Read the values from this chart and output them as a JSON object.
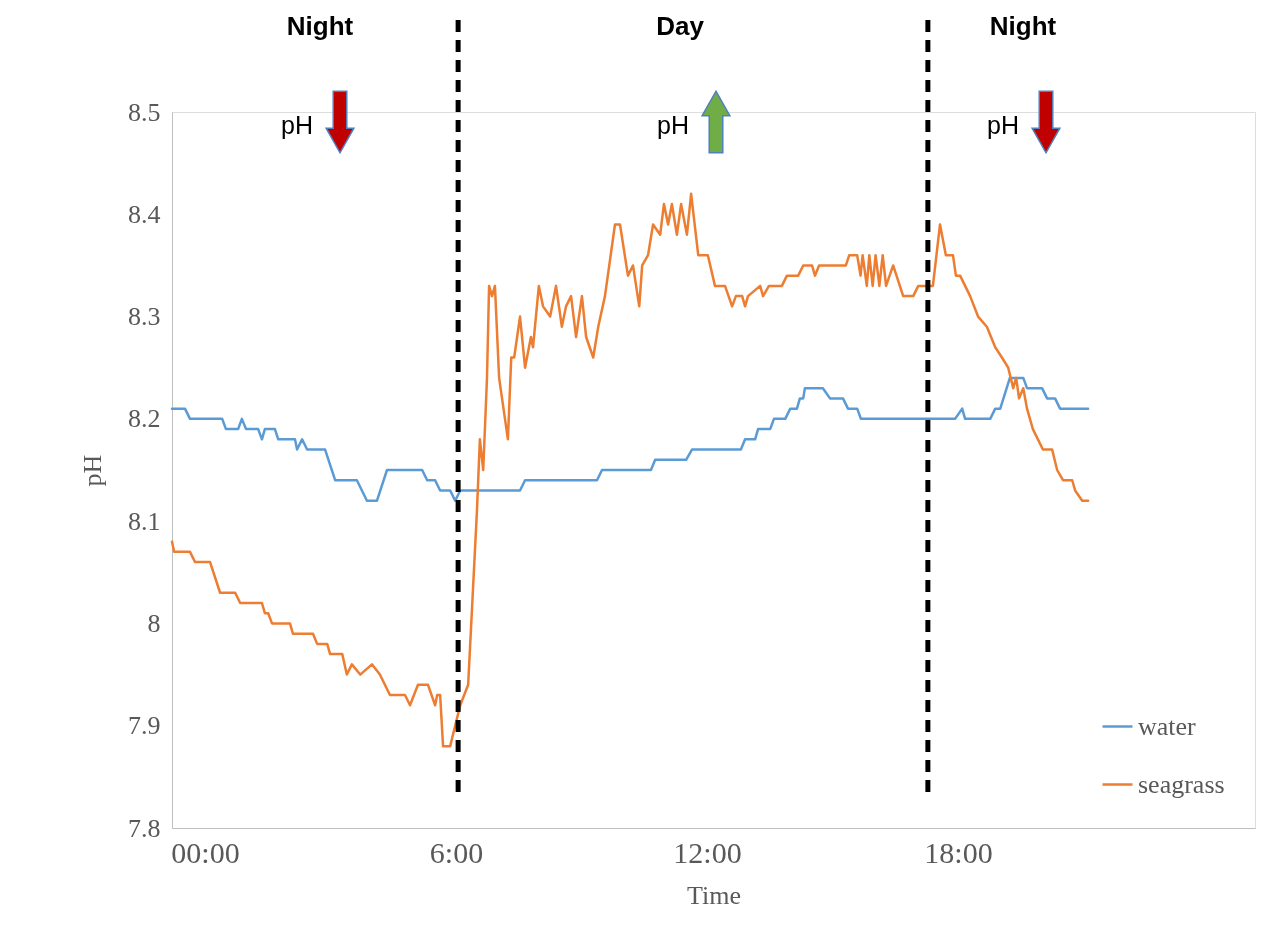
{
  "chart_data": {
    "type": "line",
    "xlabel": "Time",
    "ylabel": "pH",
    "xlim": [
      -0.79,
      25.1
    ],
    "xticks": [
      {
        "value": 0,
        "label": "00:00"
      },
      {
        "value": 6,
        "label": "6:00"
      },
      {
        "value": 12,
        "label": "12:00"
      },
      {
        "value": 18,
        "label": "18:00"
      }
    ],
    "ylim": [
      7.8,
      8.5
    ],
    "yticks": [
      7.8,
      7.9,
      8,
      8.1,
      8.2,
      8.3,
      8.4,
      8.5
    ],
    "grid": false,
    "legend": "bottom right",
    "marker": "none",
    "line_style": "solid",
    "series": [
      {
        "name": "water",
        "color": "#5b9bd5",
        "x": [
          -0.79,
          -0.48,
          -0.36,
          0.41,
          0.5,
          0.79,
          0.88,
          0.98,
          1.27,
          1.36,
          1.43,
          1.67,
          1.75,
          2.15,
          2.2,
          2.32,
          2.44,
          2.87,
          3.11,
          3.63,
          3.75,
          3.87,
          4.11,
          4.35,
          5.19,
          5.31,
          5.5,
          5.62,
          5.86,
          5.98,
          6.1,
          7.53,
          7.65,
          9.37,
          9.49,
          10.66,
          10.76,
          11.5,
          11.64,
          12.81,
          12.91,
          13.15,
          13.22,
          13.51,
          13.6,
          13.87,
          13.99,
          14.15,
          14.22,
          14.3,
          14.34,
          14.77,
          14.94,
          15.25,
          15.37,
          15.59,
          15.68,
          17.93,
          18.1,
          18.17,
          18.77,
          18.89,
          19.01,
          19.24,
          19.56,
          19.65,
          20.01,
          20.13,
          20.32,
          20.44,
          21.11
        ],
        "values": [
          8.21,
          8.21,
          8.2,
          8.2,
          8.19,
          8.19,
          8.2,
          8.19,
          8.19,
          8.18,
          8.19,
          8.19,
          8.18,
          8.18,
          8.17,
          8.18,
          8.17,
          8.17,
          8.14,
          8.14,
          8.13,
          8.12,
          8.12,
          8.15,
          8.15,
          8.14,
          8.14,
          8.13,
          8.13,
          8.12,
          8.13,
          8.13,
          8.14,
          8.14,
          8.15,
          8.15,
          8.16,
          8.16,
          8.17,
          8.17,
          8.18,
          8.18,
          8.19,
          8.19,
          8.2,
          8.2,
          8.21,
          8.21,
          8.22,
          8.22,
          8.23,
          8.23,
          8.22,
          8.22,
          8.21,
          8.21,
          8.2,
          8.2,
          8.21,
          8.2,
          8.2,
          8.21,
          8.21,
          8.24,
          8.24,
          8.23,
          8.23,
          8.22,
          8.22,
          8.21,
          8.21
        ]
      },
      {
        "name": "seagrass",
        "color": "#ed7d31",
        "x": [
          -0.79,
          -0.74,
          -0.36,
          -0.24,
          0.12,
          0.36,
          0.72,
          0.84,
          1.36,
          1.43,
          1.51,
          1.6,
          2.03,
          2.1,
          2.58,
          2.68,
          2.92,
          2.99,
          3.28,
          3.39,
          3.51,
          3.71,
          3.99,
          4.18,
          4.42,
          4.78,
          4.9,
          5.09,
          5.33,
          5.5,
          5.55,
          5.62,
          5.69,
          5.86,
          6.1,
          6.29,
          6.5,
          6.57,
          6.65,
          6.74,
          6.79,
          6.86,
          6.93,
          7.03,
          7.24,
          7.32,
          7.39,
          7.53,
          7.65,
          7.79,
          7.84,
          7.98,
          8.08,
          8.25,
          8.39,
          8.53,
          8.63,
          8.75,
          8.87,
          9.01,
          9.11,
          9.28,
          9.4,
          9.56,
          9.8,
          9.92,
          10.11,
          10.23,
          10.38,
          10.45,
          10.59,
          10.71,
          10.88,
          10.97,
          11.07,
          11.16,
          11.28,
          11.38,
          11.52,
          11.62,
          11.79,
          11.91,
          12.02,
          12.19,
          12.43,
          12.6,
          12.69,
          12.84,
          12.91,
          12.98,
          13.27,
          13.34,
          13.48,
          13.56,
          13.79,
          13.91,
          14.18,
          14.3,
          14.51,
          14.58,
          14.68,
          15.32,
          15.4,
          15.59,
          15.67,
          15.72,
          15.82,
          15.88,
          15.96,
          16.03,
          16.12,
          16.2,
          16.28,
          16.45,
          16.69,
          16.93,
          17.05,
          17.4,
          17.57,
          17.71,
          17.88,
          17.95,
          18.05,
          18.29,
          18.48,
          18.69,
          18.89,
          19.05,
          19.2,
          19.32,
          19.39,
          19.46,
          19.56,
          19.65,
          19.79,
          20.03,
          20.25,
          20.37,
          20.51,
          20.73,
          20.8,
          20.97,
          21.11
        ],
        "values": [
          8.08,
          8.07,
          8.07,
          8.06,
          8.06,
          8.03,
          8.03,
          8.02,
          8.02,
          8.01,
          8.01,
          8.0,
          8.0,
          7.99,
          7.99,
          7.98,
          7.98,
          7.97,
          7.97,
          7.95,
          7.96,
          7.95,
          7.96,
          7.95,
          7.93,
          7.93,
          7.92,
          7.94,
          7.94,
          7.92,
          7.93,
          7.93,
          7.88,
          7.88,
          7.92,
          7.94,
          8.11,
          8.18,
          8.15,
          8.24,
          8.33,
          8.32,
          8.33,
          8.24,
          8.18,
          8.26,
          8.26,
          8.3,
          8.25,
          8.28,
          8.27,
          8.33,
          8.31,
          8.3,
          8.33,
          8.29,
          8.31,
          8.32,
          8.28,
          8.32,
          8.28,
          8.26,
          8.29,
          8.32,
          8.39,
          8.39,
          8.34,
          8.35,
          8.31,
          8.35,
          8.36,
          8.39,
          8.38,
          8.41,
          8.39,
          8.41,
          8.38,
          8.41,
          8.38,
          8.42,
          8.36,
          8.36,
          8.36,
          8.33,
          8.33,
          8.31,
          8.32,
          8.32,
          8.31,
          8.32,
          8.33,
          8.32,
          8.33,
          8.33,
          8.33,
          8.34,
          8.34,
          8.35,
          8.35,
          8.34,
          8.35,
          8.35,
          8.36,
          8.36,
          8.34,
          8.36,
          8.33,
          8.36,
          8.33,
          8.36,
          8.33,
          8.36,
          8.33,
          8.35,
          8.32,
          8.32,
          8.33,
          8.33,
          8.39,
          8.36,
          8.36,
          8.34,
          8.34,
          8.32,
          8.3,
          8.29,
          8.27,
          8.26,
          8.25,
          8.23,
          8.24,
          8.22,
          8.23,
          8.21,
          8.19,
          8.17,
          8.17,
          8.15,
          8.14,
          8.14,
          8.13,
          8.12,
          8.12
        ]
      }
    ],
    "ref_lines": [
      {
        "axis": "x",
        "value": 6.05,
        "color": "#000000",
        "line_style": "dashed"
      },
      {
        "axis": "x",
        "value": 17.28,
        "color": "#000000",
        "line_style": "dashed"
      }
    ],
    "annotations": [
      "Night",
      "Day",
      "Night",
      "pH",
      "pH",
      "pH"
    ]
  }
}
